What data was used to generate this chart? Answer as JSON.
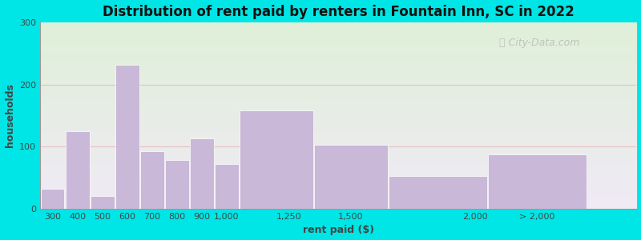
{
  "title": "Distribution of rent paid by renters in Fountain Inn, SC in 2022",
  "xlabel": "rent paid ($)",
  "ylabel": "households",
  "bar_labels": [
    "300",
    "400",
    "500",
    "600",
    "700",
    "800",
    "900",
    "1,000",
    "1,250",
    "1,500",
    "2,000",
    "> 2,000"
  ],
  "bar_values": [
    32,
    125,
    20,
    232,
    93,
    78,
    113,
    72,
    158,
    103,
    53,
    88
  ],
  "bar_left_edges": [
    250,
    350,
    450,
    550,
    650,
    750,
    850,
    950,
    1050,
    1350,
    1650,
    2050
  ],
  "bar_widths": [
    100,
    100,
    100,
    100,
    100,
    100,
    100,
    100,
    300,
    300,
    400,
    400
  ],
  "bar_color": "#c9b8d8",
  "ylim": [
    0,
    300
  ],
  "yticks": [
    0,
    100,
    200,
    300
  ],
  "xlim": [
    250,
    2650
  ],
  "xtick_positions": [
    300,
    400,
    500,
    600,
    700,
    800,
    900,
    1000,
    1250,
    1500,
    2000,
    2250
  ],
  "background_outer": "#00e5e5",
  "background_inner_top": "#dff0d8",
  "background_inner_bottom": "#f0eaf5",
  "grid_color": "#e8b0b0",
  "grid_alpha": 0.7,
  "title_fontsize": 12,
  "axis_label_fontsize": 9,
  "tick_fontsize": 8,
  "watermark_text": "City-Data.com",
  "watermark_color": "#bbbbbb",
  "watermark_fontsize": 9
}
